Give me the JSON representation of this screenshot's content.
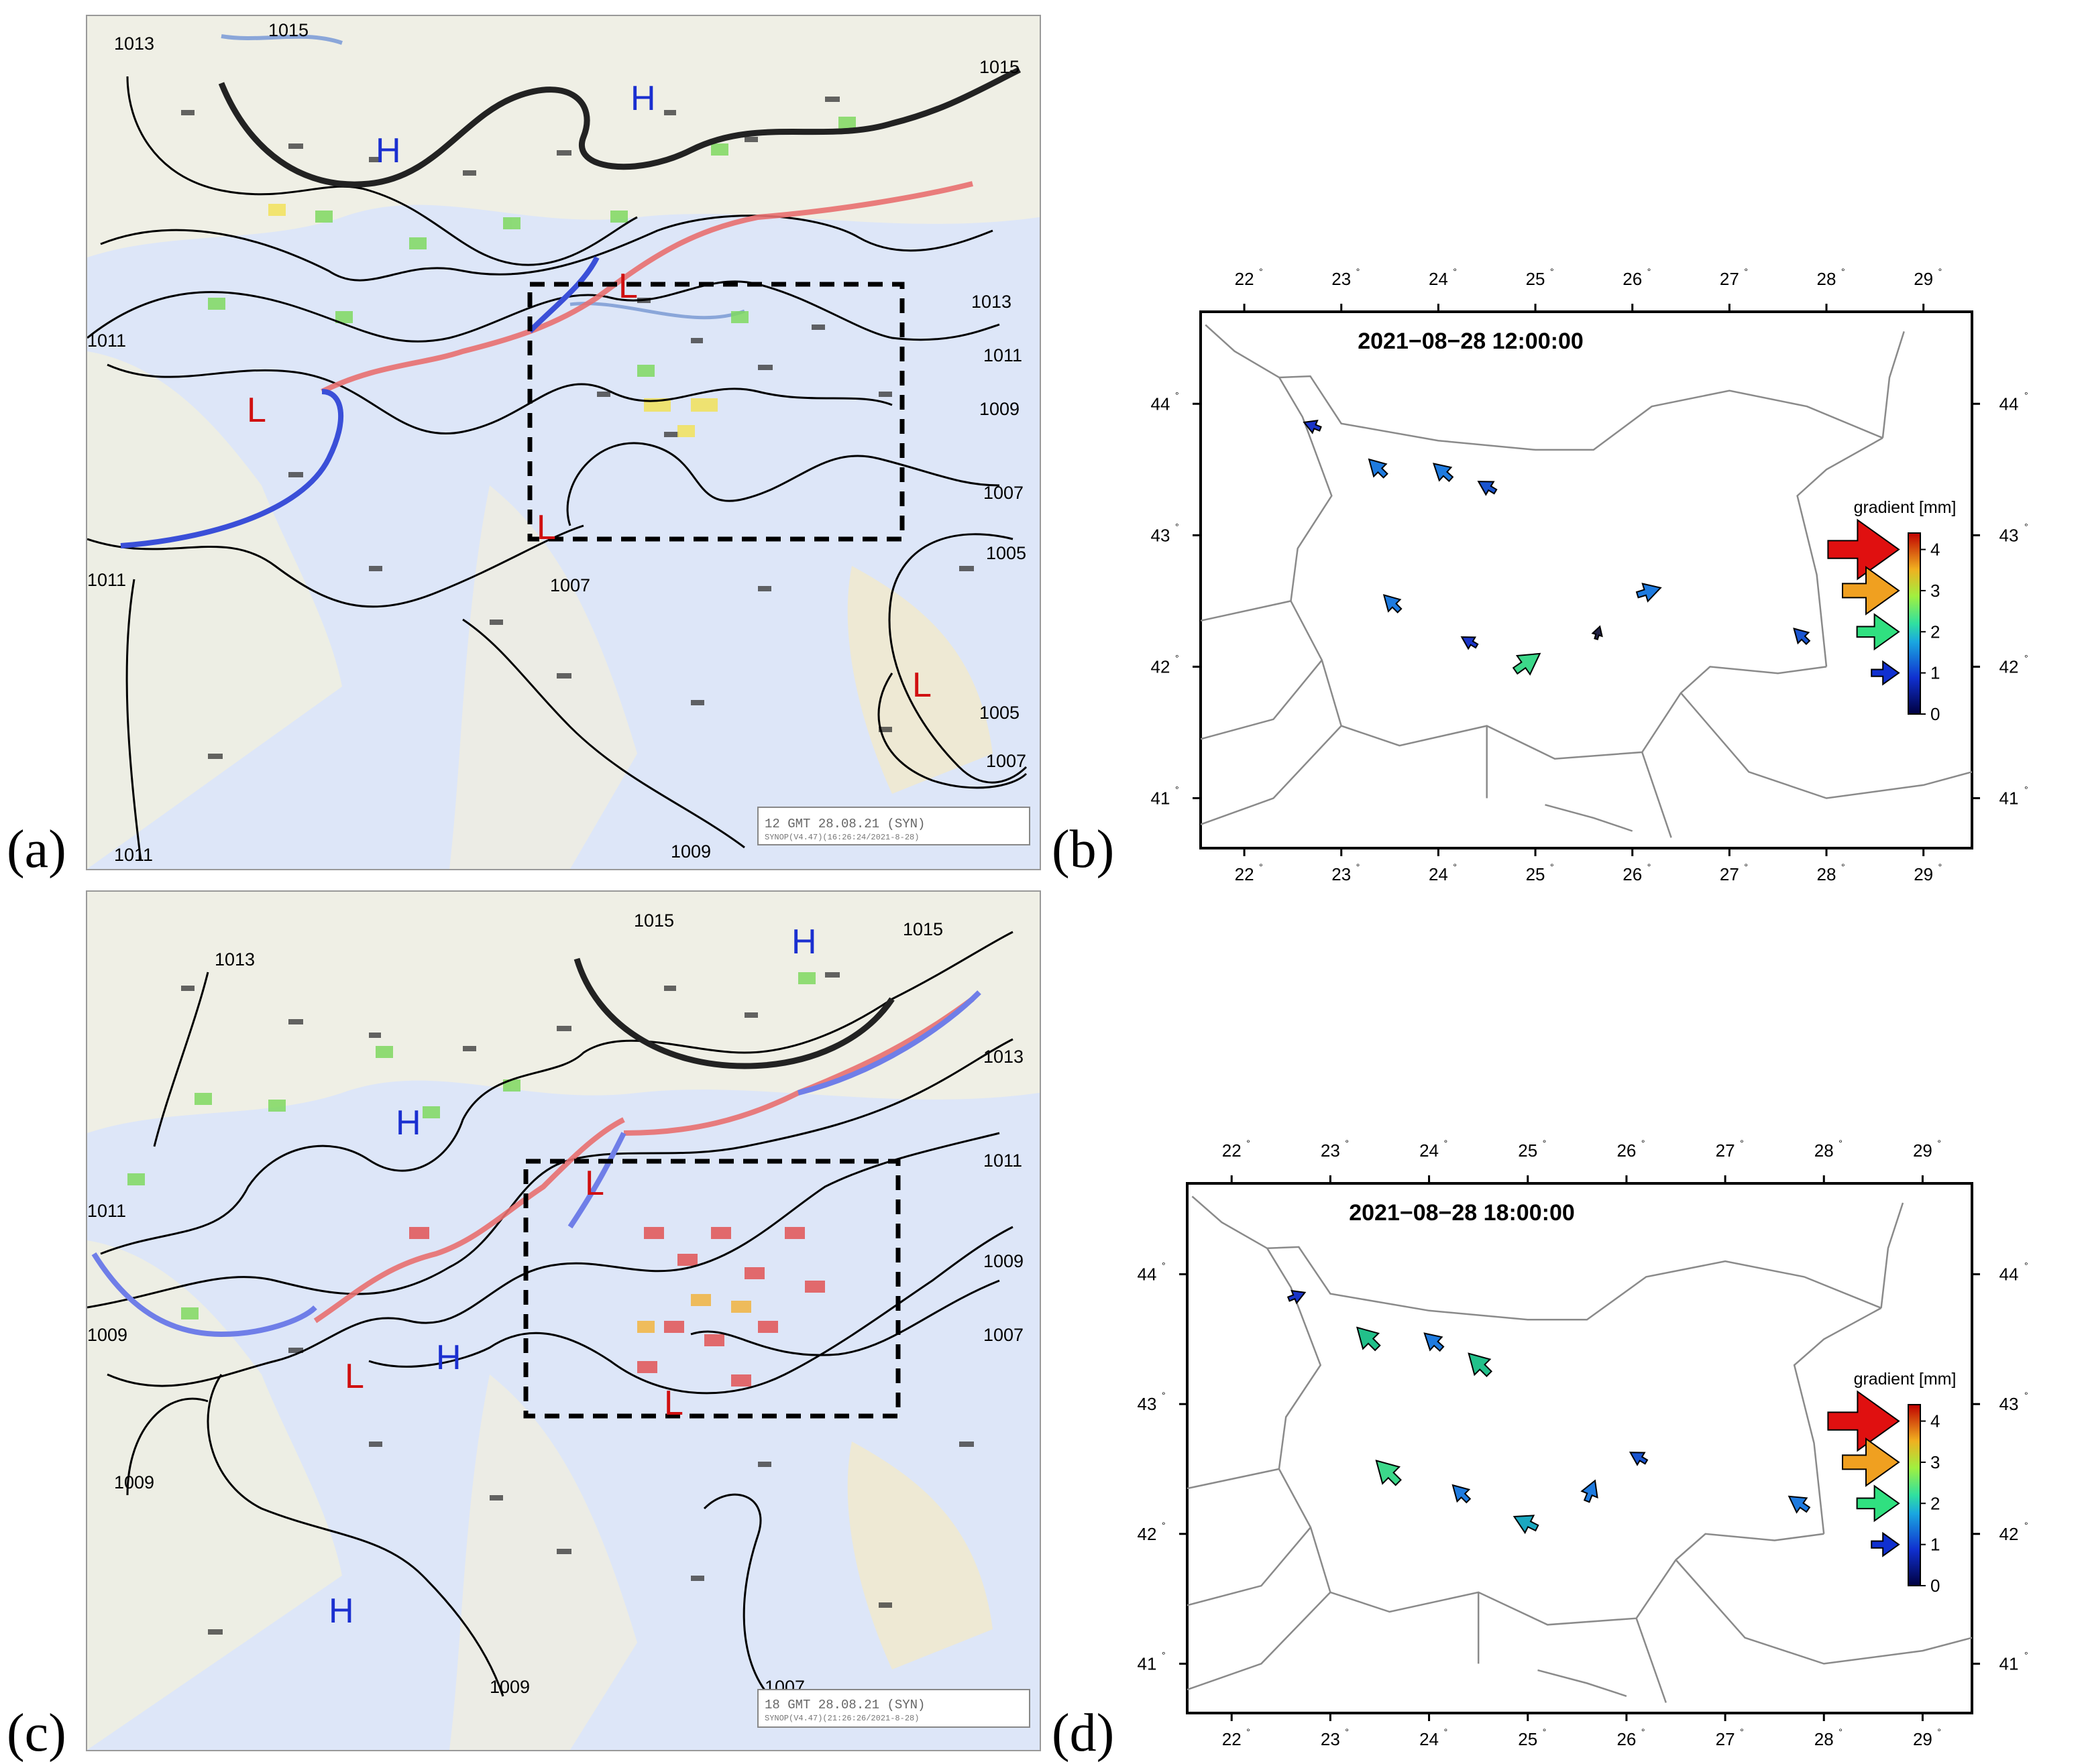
{
  "panel_labels": [
    "(a)",
    "(b)",
    "(c)",
    "(d)"
  ],
  "synoptic_a": {
    "stamp": "12 GMT 28.08.21 (SYN)",
    "stamp_sub": "SYNOP(V4.47)(16:26:24/2021-8-28)",
    "isobar_labels": [
      "1013",
      "1015",
      "1015",
      "1013",
      "1011",
      "1011",
      "1009",
      "1007",
      "1005",
      "1011",
      "1007",
      "1005",
      "1007",
      "1011",
      "1009"
    ],
    "pressure_centers": [
      "H",
      "H",
      "L",
      "L",
      "L",
      "L"
    ]
  },
  "synoptic_c": {
    "stamp": "18 GMT 28.08.21 (SYN)",
    "stamp_sub": "SYNOP(V4.47)(21:26:26/2021-8-28)",
    "isobar_labels": [
      "1013",
      "1015",
      "1015",
      "1013",
      "1011",
      "1011",
      "1009",
      "1009",
      "1007",
      "1009",
      "1009",
      "1007"
    ],
    "pressure_centers": [
      "H",
      "H",
      "H",
      "H",
      "L",
      "L",
      "L"
    ]
  },
  "map_b": {
    "title": "2021−08−28 12:00:00",
    "lon_ticks": [
      "22",
      "23",
      "24",
      "25",
      "26",
      "27",
      "28",
      "29"
    ],
    "lat_ticks": [
      "44",
      "43",
      "42",
      "41"
    ],
    "legend_title": "gradient [mm]",
    "colorbar_ticks": [
      "4",
      "3",
      "2",
      "1",
      "0"
    ],
    "arrows": [
      {
        "lon": 22.68,
        "lat": 43.84,
        "dx": -1,
        "dy": -0.4,
        "mag": 0.8,
        "color": "#1a35c8"
      },
      {
        "lon": 23.35,
        "lat": 43.53,
        "dx": -1,
        "dy": -1,
        "mag": 1.3,
        "color": "#1e7be0"
      },
      {
        "lon": 24.02,
        "lat": 43.5,
        "dx": -1,
        "dy": -0.9,
        "mag": 1.3,
        "color": "#1e7be0"
      },
      {
        "lon": 24.48,
        "lat": 43.38,
        "dx": -1,
        "dy": -0.6,
        "mag": 1.0,
        "color": "#1a55d0"
      },
      {
        "lon": 23.5,
        "lat": 42.5,
        "dx": -1,
        "dy": -1,
        "mag": 1.2,
        "color": "#1e7be0"
      },
      {
        "lon": 24.3,
        "lat": 42.2,
        "dx": -1,
        "dy": -0.6,
        "mag": 0.8,
        "color": "#1a35c8"
      },
      {
        "lon": 24.95,
        "lat": 42.05,
        "dx": 1,
        "dy": -0.7,
        "mag": 1.9,
        "color": "#3cd88a"
      },
      {
        "lon": 25.65,
        "lat": 42.27,
        "dx": 0.3,
        "dy": -1,
        "mag": 0.4,
        "color": "#222244"
      },
      {
        "lon": 26.2,
        "lat": 42.58,
        "dx": 1,
        "dy": -0.3,
        "mag": 1.4,
        "color": "#1e7be0"
      },
      {
        "lon": 27.72,
        "lat": 42.25,
        "dx": -1,
        "dy": -1,
        "mag": 1.0,
        "color": "#1a55d0"
      }
    ]
  },
  "map_d": {
    "title": "2021−08−28 18:00:00",
    "lon_ticks": [
      "22",
      "23",
      "24",
      "25",
      "26",
      "27",
      "28",
      "29"
    ],
    "lat_ticks": [
      "44",
      "43",
      "42",
      "41"
    ],
    "legend_title": "gradient [mm]",
    "colorbar_ticks": [
      "4",
      "3",
      "2",
      "1",
      "0"
    ],
    "arrows": [
      {
        "lon": 22.68,
        "lat": 43.84,
        "dx": 1,
        "dy": -0.4,
        "mag": 0.8,
        "color": "#1a35c8"
      },
      {
        "lon": 23.35,
        "lat": 43.53,
        "dx": -1,
        "dy": -1,
        "mag": 1.8,
        "color": "#22c08a"
      },
      {
        "lon": 24.02,
        "lat": 43.5,
        "dx": -1,
        "dy": -0.9,
        "mag": 1.3,
        "color": "#1e7be0"
      },
      {
        "lon": 24.48,
        "lat": 43.33,
        "dx": -1,
        "dy": -1,
        "mag": 1.8,
        "color": "#22c08a"
      },
      {
        "lon": 23.55,
        "lat": 42.5,
        "dx": -1,
        "dy": -1,
        "mag": 2.0,
        "color": "#3cd88a"
      },
      {
        "lon": 24.3,
        "lat": 42.33,
        "dx": -1,
        "dy": -1,
        "mag": 1.2,
        "color": "#1e7be0"
      },
      {
        "lon": 24.95,
        "lat": 42.1,
        "dx": -1,
        "dy": -0.5,
        "mag": 1.5,
        "color": "#1aa8c0"
      },
      {
        "lon": 25.65,
        "lat": 42.35,
        "dx": 0.4,
        "dy": -1,
        "mag": 1.2,
        "color": "#1e7be0"
      },
      {
        "lon": 26.1,
        "lat": 42.6,
        "dx": -1,
        "dy": -0.6,
        "mag": 0.9,
        "color": "#1a55d0"
      },
      {
        "lon": 27.72,
        "lat": 42.25,
        "dx": -1,
        "dy": -0.7,
        "mag": 1.3,
        "color": "#1e7be0"
      }
    ]
  }
}
